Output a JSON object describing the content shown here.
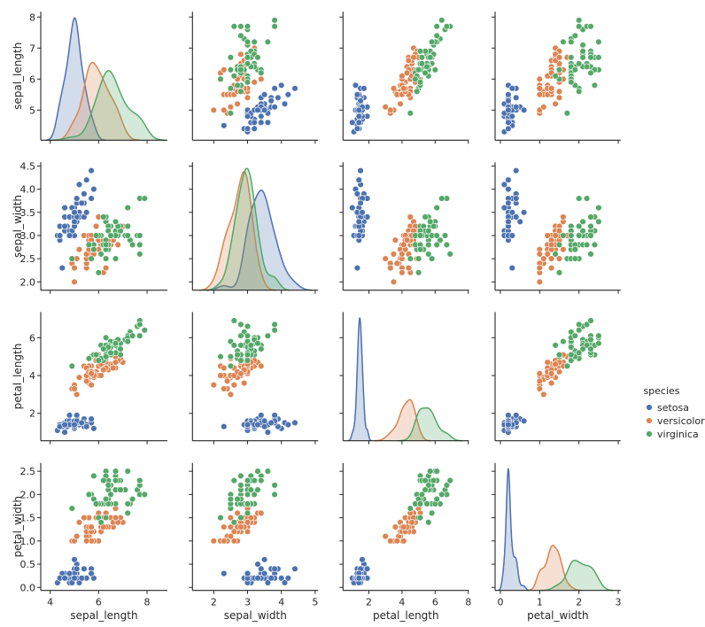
{
  "chart_data": {
    "type": "scatter",
    "kind": "pairplot",
    "diag_kind": "kde",
    "hue": "species",
    "legend": {
      "title": "species",
      "placement": "right",
      "entries": [
        "setosa",
        "versicolor",
        "virginica"
      ]
    },
    "colors": {
      "setosa": "#4c72b0",
      "versicolor": "#dd8452",
      "virginica": "#55a868"
    },
    "grid": false,
    "variables": [
      "sepal_length",
      "sepal_width",
      "petal_length",
      "petal_width"
    ],
    "axes": {
      "sepal_length": {
        "label": "sepal_length",
        "xlim": [
          3.61,
          8.84
        ],
        "ylim": [
          4.03,
          8.17
        ],
        "xticks": [
          4,
          6,
          8
        ],
        "xtick_labels": [
          "4",
          "6",
          "8"
        ],
        "yticks": [
          5,
          6,
          7,
          8
        ],
        "ytick_labels": [
          "5",
          "6",
          "7",
          "8"
        ]
      },
      "sepal_width": {
        "label": "sepal_width",
        "xlim": [
          1.37,
          5.09
        ],
        "ylim": [
          1.82,
          4.58
        ],
        "xticks": [
          2,
          3,
          4,
          5
        ],
        "xtick_labels": [
          "2",
          "3",
          "4",
          "5"
        ],
        "yticks": [
          2.0,
          2.5,
          3.0,
          3.5,
          4.0,
          4.5
        ],
        "ytick_labels": [
          "2.0",
          "2.5",
          "3.0",
          "3.5",
          "4.0",
          "4.5"
        ]
      },
      "petal_length": {
        "label": "petal_length",
        "xlim": [
          0.44,
          8.03
        ],
        "ylim": [
          0.55,
          7.36
        ],
        "xticks": [
          2,
          4,
          6,
          8
        ],
        "xtick_labels": [
          "2",
          "4",
          "6",
          "8"
        ],
        "yticks": [
          2,
          4,
          6
        ],
        "ytick_labels": [
          "2",
          "4",
          "6"
        ]
      },
      "petal_width": {
        "label": "petal_width",
        "xlim": [
          -0.135,
          3.06
        ],
        "ylim": [
          -0.065,
          2.68
        ],
        "xticks": [
          0,
          1,
          2,
          3
        ],
        "xtick_labels": [
          "0",
          "1",
          "2",
          "3"
        ],
        "yticks": [
          0.0,
          0.5,
          1.0,
          1.5,
          2.0,
          2.5
        ],
        "ytick_labels": [
          "0.0",
          "0.5",
          "1.0",
          "1.5",
          "2.0",
          "2.5"
        ]
      }
    },
    "data": {
      "setosa": [
        [
          5.1,
          3.5,
          1.4,
          0.2
        ],
        [
          4.9,
          3.0,
          1.4,
          0.2
        ],
        [
          4.7,
          3.2,
          1.3,
          0.2
        ],
        [
          4.6,
          3.1,
          1.5,
          0.2
        ],
        [
          5.0,
          3.6,
          1.4,
          0.2
        ],
        [
          5.4,
          3.9,
          1.7,
          0.4
        ],
        [
          4.6,
          3.4,
          1.4,
          0.3
        ],
        [
          5.0,
          3.4,
          1.5,
          0.2
        ],
        [
          4.4,
          2.9,
          1.4,
          0.2
        ],
        [
          4.9,
          3.1,
          1.5,
          0.1
        ],
        [
          5.4,
          3.7,
          1.5,
          0.2
        ],
        [
          4.8,
          3.4,
          1.6,
          0.2
        ],
        [
          4.8,
          3.0,
          1.4,
          0.1
        ],
        [
          4.3,
          3.0,
          1.1,
          0.1
        ],
        [
          5.8,
          4.0,
          1.2,
          0.2
        ],
        [
          5.7,
          4.4,
          1.5,
          0.4
        ],
        [
          5.4,
          3.9,
          1.3,
          0.4
        ],
        [
          5.1,
          3.5,
          1.4,
          0.3
        ],
        [
          5.7,
          3.8,
          1.7,
          0.3
        ],
        [
          5.1,
          3.8,
          1.5,
          0.3
        ],
        [
          5.4,
          3.4,
          1.7,
          0.2
        ],
        [
          5.1,
          3.7,
          1.5,
          0.4
        ],
        [
          4.6,
          3.6,
          1.0,
          0.2
        ],
        [
          5.1,
          3.3,
          1.7,
          0.5
        ],
        [
          4.8,
          3.4,
          1.9,
          0.2
        ],
        [
          5.0,
          3.0,
          1.6,
          0.2
        ],
        [
          5.0,
          3.4,
          1.6,
          0.4
        ],
        [
          5.2,
          3.5,
          1.5,
          0.2
        ],
        [
          5.2,
          3.4,
          1.4,
          0.2
        ],
        [
          4.7,
          3.2,
          1.6,
          0.2
        ],
        [
          4.8,
          3.1,
          1.6,
          0.2
        ],
        [
          5.4,
          3.4,
          1.5,
          0.4
        ],
        [
          5.2,
          4.1,
          1.5,
          0.1
        ],
        [
          5.5,
          4.2,
          1.4,
          0.2
        ],
        [
          4.9,
          3.1,
          1.5,
          0.2
        ],
        [
          5.0,
          3.2,
          1.2,
          0.2
        ],
        [
          5.5,
          3.5,
          1.3,
          0.2
        ],
        [
          4.9,
          3.6,
          1.4,
          0.1
        ],
        [
          4.4,
          3.0,
          1.3,
          0.2
        ],
        [
          5.1,
          3.4,
          1.5,
          0.2
        ],
        [
          5.0,
          3.5,
          1.3,
          0.3
        ],
        [
          4.5,
          2.3,
          1.3,
          0.3
        ],
        [
          4.4,
          3.2,
          1.3,
          0.2
        ],
        [
          5.0,
          3.5,
          1.6,
          0.6
        ],
        [
          5.1,
          3.8,
          1.9,
          0.4
        ],
        [
          4.8,
          3.0,
          1.4,
          0.3
        ],
        [
          5.1,
          3.8,
          1.6,
          0.2
        ],
        [
          4.6,
          3.2,
          1.4,
          0.2
        ],
        [
          5.3,
          3.7,
          1.5,
          0.2
        ],
        [
          5.0,
          3.3,
          1.4,
          0.2
        ]
      ],
      "versicolor": [
        [
          7.0,
          3.2,
          4.7,
          1.4
        ],
        [
          6.4,
          3.2,
          4.5,
          1.5
        ],
        [
          6.9,
          3.1,
          4.9,
          1.5
        ],
        [
          5.5,
          2.3,
          4.0,
          1.3
        ],
        [
          6.5,
          2.8,
          4.6,
          1.5
        ],
        [
          5.7,
          2.8,
          4.5,
          1.3
        ],
        [
          6.3,
          3.3,
          4.7,
          1.6
        ],
        [
          4.9,
          2.4,
          3.3,
          1.0
        ],
        [
          6.6,
          2.9,
          4.6,
          1.3
        ],
        [
          5.2,
          2.7,
          3.9,
          1.4
        ],
        [
          5.0,
          2.0,
          3.5,
          1.0
        ],
        [
          5.9,
          3.0,
          4.2,
          1.5
        ],
        [
          6.0,
          2.2,
          4.0,
          1.0
        ],
        [
          6.1,
          2.9,
          4.7,
          1.4
        ],
        [
          5.6,
          2.9,
          3.6,
          1.3
        ],
        [
          6.7,
          3.1,
          4.4,
          1.4
        ],
        [
          5.6,
          3.0,
          4.5,
          1.5
        ],
        [
          5.8,
          2.7,
          4.1,
          1.0
        ],
        [
          6.2,
          2.2,
          4.5,
          1.5
        ],
        [
          5.6,
          2.5,
          3.9,
          1.1
        ],
        [
          5.9,
          3.2,
          4.8,
          1.8
        ],
        [
          6.1,
          2.8,
          4.0,
          1.3
        ],
        [
          6.3,
          2.5,
          4.9,
          1.5
        ],
        [
          6.1,
          2.8,
          4.7,
          1.2
        ],
        [
          6.4,
          2.9,
          4.3,
          1.3
        ],
        [
          6.6,
          3.0,
          4.4,
          1.4
        ],
        [
          6.8,
          2.8,
          4.8,
          1.4
        ],
        [
          6.7,
          3.0,
          5.0,
          1.7
        ],
        [
          6.0,
          2.9,
          4.5,
          1.5
        ],
        [
          5.7,
          2.6,
          3.5,
          1.0
        ],
        [
          5.5,
          2.4,
          3.8,
          1.1
        ],
        [
          5.5,
          2.4,
          3.7,
          1.0
        ],
        [
          5.8,
          2.7,
          3.9,
          1.2
        ],
        [
          6.0,
          2.7,
          5.1,
          1.6
        ],
        [
          5.4,
          3.0,
          4.5,
          1.5
        ],
        [
          6.0,
          3.4,
          4.5,
          1.6
        ],
        [
          6.7,
          3.1,
          4.7,
          1.5
        ],
        [
          6.3,
          2.3,
          4.4,
          1.3
        ],
        [
          5.6,
          3.0,
          4.1,
          1.3
        ],
        [
          5.5,
          2.5,
          4.0,
          1.3
        ],
        [
          5.5,
          2.6,
          4.4,
          1.2
        ],
        [
          6.1,
          3.0,
          4.6,
          1.4
        ],
        [
          5.8,
          2.6,
          4.0,
          1.2
        ],
        [
          5.0,
          2.3,
          3.3,
          1.0
        ],
        [
          5.6,
          2.7,
          4.2,
          1.3
        ],
        [
          5.7,
          3.0,
          4.2,
          1.2
        ],
        [
          5.7,
          2.9,
          4.2,
          1.3
        ],
        [
          6.2,
          2.9,
          4.3,
          1.3
        ],
        [
          5.1,
          2.5,
          3.0,
          1.1
        ],
        [
          5.7,
          2.8,
          4.1,
          1.3
        ]
      ],
      "virginica": [
        [
          6.3,
          3.3,
          6.0,
          2.5
        ],
        [
          5.8,
          2.7,
          5.1,
          1.9
        ],
        [
          7.1,
          3.0,
          5.9,
          2.1
        ],
        [
          6.3,
          2.9,
          5.6,
          1.8
        ],
        [
          6.5,
          3.0,
          5.8,
          2.2
        ],
        [
          7.6,
          3.0,
          6.6,
          2.1
        ],
        [
          4.9,
          2.5,
          4.5,
          1.7
        ],
        [
          7.3,
          2.9,
          6.3,
          1.8
        ],
        [
          6.7,
          2.5,
          5.8,
          1.8
        ],
        [
          7.2,
          3.6,
          6.1,
          2.5
        ],
        [
          6.5,
          3.2,
          5.1,
          2.0
        ],
        [
          6.4,
          2.7,
          5.3,
          1.9
        ],
        [
          6.8,
          3.0,
          5.5,
          2.1
        ],
        [
          5.7,
          2.5,
          5.0,
          2.0
        ],
        [
          5.8,
          2.8,
          5.1,
          2.4
        ],
        [
          6.4,
          3.2,
          5.3,
          2.3
        ],
        [
          6.5,
          3.0,
          5.5,
          1.8
        ],
        [
          7.7,
          3.8,
          6.7,
          2.2
        ],
        [
          7.7,
          2.6,
          6.9,
          2.3
        ],
        [
          6.0,
          2.2,
          5.0,
          1.5
        ],
        [
          6.9,
          3.2,
          5.7,
          2.3
        ],
        [
          5.6,
          2.8,
          4.9,
          2.0
        ],
        [
          7.7,
          2.8,
          6.7,
          2.0
        ],
        [
          6.3,
          2.7,
          4.9,
          1.8
        ],
        [
          6.7,
          3.3,
          5.7,
          2.1
        ],
        [
          7.2,
          3.2,
          6.0,
          1.8
        ],
        [
          6.2,
          2.8,
          4.8,
          1.8
        ],
        [
          6.1,
          3.0,
          4.9,
          1.8
        ],
        [
          6.4,
          2.8,
          5.6,
          2.1
        ],
        [
          7.2,
          3.0,
          5.8,
          1.6
        ],
        [
          7.4,
          2.8,
          6.1,
          1.9
        ],
        [
          7.9,
          3.8,
          6.4,
          2.0
        ],
        [
          6.4,
          2.8,
          5.6,
          2.2
        ],
        [
          6.3,
          2.8,
          5.1,
          1.5
        ],
        [
          6.1,
          2.6,
          5.6,
          1.4
        ],
        [
          7.7,
          3.0,
          6.1,
          2.3
        ],
        [
          6.3,
          3.4,
          5.6,
          2.4
        ],
        [
          6.4,
          3.1,
          5.5,
          1.8
        ],
        [
          6.0,
          3.0,
          4.8,
          1.8
        ],
        [
          6.9,
          3.1,
          5.4,
          2.1
        ],
        [
          6.7,
          3.1,
          5.6,
          2.4
        ],
        [
          6.9,
          3.1,
          5.1,
          2.3
        ],
        [
          5.8,
          2.7,
          5.1,
          1.9
        ],
        [
          6.8,
          3.2,
          5.9,
          2.3
        ],
        [
          6.7,
          3.3,
          5.7,
          2.5
        ],
        [
          6.7,
          3.0,
          5.2,
          2.3
        ],
        [
          6.3,
          2.5,
          5.0,
          1.9
        ],
        [
          6.5,
          3.0,
          5.2,
          2.0
        ],
        [
          6.2,
          3.4,
          5.4,
          2.3
        ],
        [
          5.9,
          3.0,
          5.1,
          1.8
        ]
      ]
    }
  }
}
